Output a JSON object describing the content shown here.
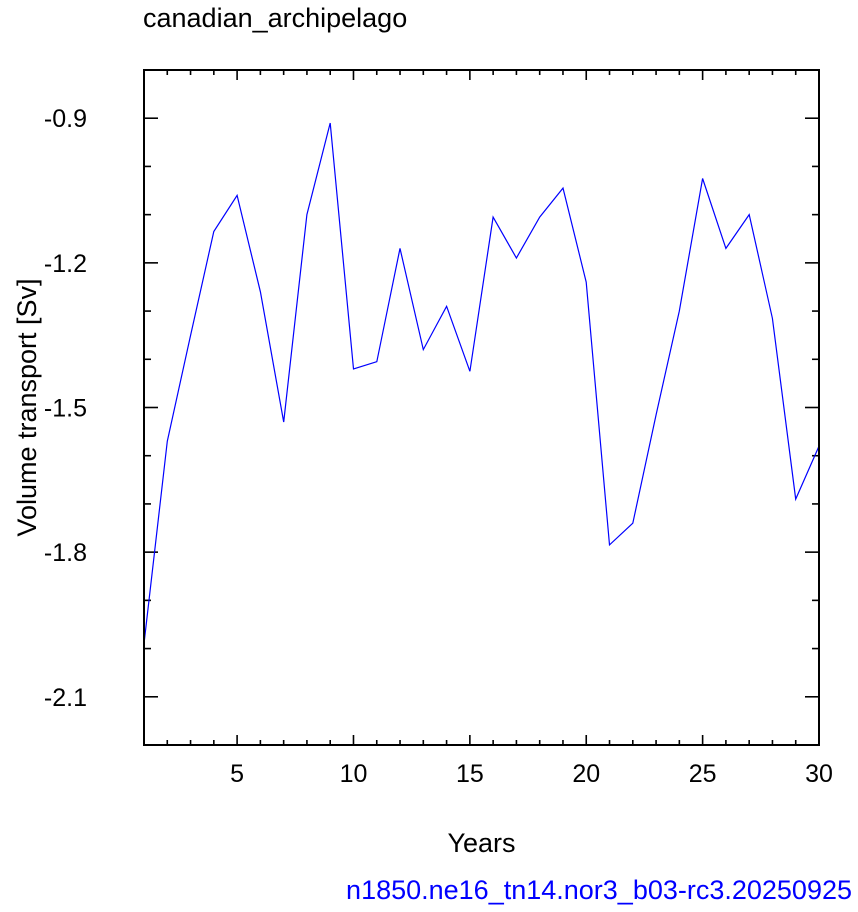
{
  "chart_data": {
    "type": "line",
    "title": "canadian_archipelago",
    "caption": "n1850.ne16_tn14.nor3_b03-rc3.20250925",
    "xlabel": "Years",
    "ylabel": "Volume transport [Sv]",
    "xlim": [
      1,
      30
    ],
    "ylim": [
      -2.2,
      -0.8
    ],
    "xticks": [
      5,
      10,
      15,
      20,
      25,
      30
    ],
    "yticks": [
      -0.9,
      -1.2,
      -1.5,
      -1.8,
      -2.1
    ],
    "xtick_labels": [
      "5",
      "10",
      "15",
      "20",
      "25",
      "30"
    ],
    "ytick_labels": [
      "-0.9",
      "-1.2",
      "-1.5",
      "-1.8",
      "-2.1"
    ],
    "grid": false,
    "line_color": "#0000ff",
    "x": [
      1,
      2,
      3,
      4,
      5,
      6,
      7,
      8,
      9,
      10,
      11,
      12,
      13,
      14,
      15,
      16,
      17,
      18,
      19,
      20,
      21,
      22,
      23,
      24,
      25,
      26,
      27,
      28,
      29,
      30
    ],
    "y": [
      -1.99,
      -1.57,
      -1.35,
      -1.135,
      -1.06,
      -1.26,
      -1.53,
      -1.1,
      -0.91,
      -1.42,
      -1.405,
      -1.17,
      -1.38,
      -1.29,
      -1.425,
      -1.105,
      -1.19,
      -1.105,
      -1.045,
      -1.24,
      -1.785,
      -1.74,
      -1.515,
      -1.3,
      -1.025,
      -1.17,
      -1.1,
      -1.315,
      -1.69,
      -1.58
    ]
  }
}
